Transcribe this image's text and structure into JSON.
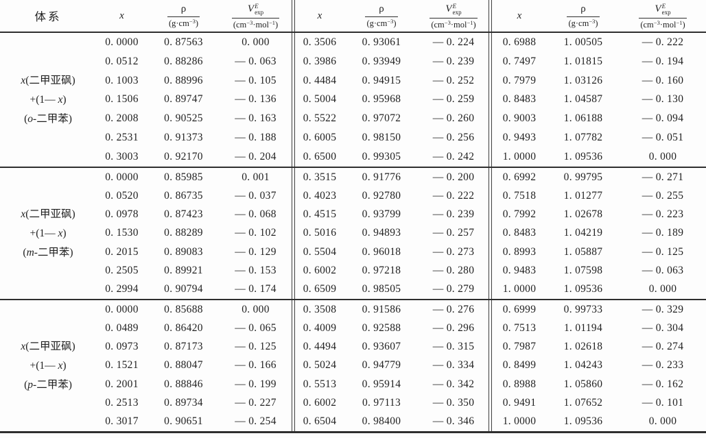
{
  "page": {
    "background": "#fdfdfd",
    "text_color": "#1f1f1f",
    "rule_color": "#2e2e2e"
  },
  "table": {
    "header": {
      "system": "体系",
      "x": "x",
      "rho": {
        "symbol": "ρ",
        "unit_pre": "(g·cm",
        "unit_sup": "−3",
        "unit_post": ")"
      },
      "v": {
        "symbol": "V",
        "sup": "E",
        "sub": "exp",
        "unit_pre": "(cm",
        "unit_sup1": "−3",
        "unit_mid": "·mol",
        "unit_sup2": "−1",
        "unit_post": ")"
      }
    },
    "groups": [
      {
        "system": {
          "l1_italic": "x",
          "l1": "(二甲亚砜)",
          "l2_pre": "+(1— ",
          "l2_italic": "x",
          "l2_post": ")",
          "l3_pre": "(",
          "l3_italic": "o",
          "l3_post": "-二甲苯)"
        },
        "blocks": [
          {
            "rows": [
              [
                "0. 0000",
                "0. 87563",
                "0. 000"
              ],
              [
                "0. 0512",
                "0. 88286",
                "— 0. 063"
              ],
              [
                "0. 1003",
                "0. 88996",
                "— 0. 105"
              ],
              [
                "0. 1506",
                "0. 89747",
                "— 0. 136"
              ],
              [
                "0. 2008",
                "0. 90525",
                "— 0. 163"
              ],
              [
                "0. 2531",
                "0. 91373",
                "— 0. 188"
              ],
              [
                "0. 3003",
                "0. 92170",
                "— 0. 204"
              ]
            ]
          },
          {
            "rows": [
              [
                "0. 3506",
                "0. 93061",
                "— 0. 224"
              ],
              [
                "0. 3986",
                "0. 93949",
                "— 0. 239"
              ],
              [
                "0. 4484",
                "0. 94915",
                "— 0. 252"
              ],
              [
                "0. 5004",
                "0. 95968",
                "— 0. 259"
              ],
              [
                "0. 5522",
                "0. 97072",
                "— 0. 260"
              ],
              [
                "0. 6005",
                "0. 98150",
                "— 0. 256"
              ],
              [
                "0. 6500",
                "0. 99305",
                "— 0. 242"
              ]
            ]
          },
          {
            "rows": [
              [
                "0. 6988",
                "1. 00505",
                "— 0. 222"
              ],
              [
                "0. 7497",
                "1. 01815",
                "— 0. 194"
              ],
              [
                "0. 7979",
                "1. 03126",
                "— 0. 160"
              ],
              [
                "0. 8483",
                "1. 04587",
                "— 0. 130"
              ],
              [
                "0. 9003",
                "1. 06188",
                "— 0. 094"
              ],
              [
                "0. 9493",
                "1. 07782",
                "— 0. 051"
              ],
              [
                "1. 0000",
                "1. 09536",
                "0. 000"
              ]
            ]
          }
        ]
      },
      {
        "system": {
          "l1_italic": "x",
          "l1": "(二甲亚砜)",
          "l2_pre": "+(1— ",
          "l2_italic": "x",
          "l2_post": ")",
          "l3_pre": "(",
          "l3_italic": "m",
          "l3_post": "-二甲苯)"
        },
        "blocks": [
          {
            "rows": [
              [
                "0. 0000",
                "0. 85985",
                "0. 001"
              ],
              [
                "0. 0520",
                "0. 86735",
                "— 0. 037"
              ],
              [
                "0. 0978",
                "0. 87423",
                "— 0. 068"
              ],
              [
                "0. 1530",
                "0. 88289",
                "— 0. 102"
              ],
              [
                "0. 2015",
                "0. 89083",
                "— 0. 129"
              ],
              [
                "0. 2505",
                "0. 89921",
                "— 0. 153"
              ],
              [
                "0. 2994",
                "0. 90794",
                "— 0. 174"
              ]
            ]
          },
          {
            "rows": [
              [
                "0. 3515",
                "0. 91776",
                "— 0. 200"
              ],
              [
                "0. 4023",
                "0. 92780",
                "— 0. 222"
              ],
              [
                "0. 4515",
                "0. 93799",
                "— 0. 239"
              ],
              [
                "0. 5016",
                "0. 94893",
                "— 0. 257"
              ],
              [
                "0. 5504",
                "0. 96018",
                "— 0. 273"
              ],
              [
                "0. 6002",
                "0. 97218",
                "— 0. 280"
              ],
              [
                "0. 6509",
                "0. 98505",
                "— 0. 279"
              ]
            ]
          },
          {
            "rows": [
              [
                "0. 6992",
                "0. 99795",
                "— 0. 271"
              ],
              [
                "0. 7518",
                "1. 01277",
                "— 0. 255"
              ],
              [
                "0. 7992",
                "1. 02678",
                "— 0. 223"
              ],
              [
                "0. 8483",
                "1. 04219",
                "— 0. 189"
              ],
              [
                "0. 8993",
                "1. 05887",
                "— 0. 125"
              ],
              [
                "0. 9483",
                "1. 07598",
                "— 0. 063"
              ],
              [
                "1. 0000",
                "1. 09536",
                "0. 000"
              ]
            ]
          }
        ]
      },
      {
        "system": {
          "l1_italic": "x",
          "l1": "(二甲亚砜)",
          "l2_pre": "+(1— ",
          "l2_italic": "x",
          "l2_post": ")",
          "l3_pre": "(",
          "l3_italic": "p",
          "l3_post": "-二甲苯)"
        },
        "blocks": [
          {
            "rows": [
              [
                "0. 0000",
                "0. 85688",
                "0. 000"
              ],
              [
                "0. 0489",
                "0. 86420",
                "— 0. 065"
              ],
              [
                "0. 0973",
                "0. 87173",
                "— 0. 125"
              ],
              [
                "0. 1521",
                "0. 88047",
                "— 0. 166"
              ],
              [
                "0. 2001",
                "0. 88846",
                "— 0. 199"
              ],
              [
                "0. 2513",
                "0. 89734",
                "— 0. 227"
              ],
              [
                "0. 3017",
                "0. 90651",
                "— 0. 254"
              ]
            ]
          },
          {
            "rows": [
              [
                "0. 3508",
                "0. 91586",
                "— 0. 276"
              ],
              [
                "0. 4009",
                "0. 92588",
                "— 0. 296"
              ],
              [
                "0. 4494",
                "0. 93607",
                "— 0. 315"
              ],
              [
                "0. 5024",
                "0. 94779",
                "— 0. 334"
              ],
              [
                "0. 5513",
                "0. 95914",
                "— 0. 342"
              ],
              [
                "0. 6002",
                "0. 97113",
                "— 0. 350"
              ],
              [
                "0. 6504",
                "0. 98400",
                "— 0. 346"
              ]
            ]
          },
          {
            "rows": [
              [
                "0. 6999",
                "0. 99733",
                "— 0. 329"
              ],
              [
                "0. 7513",
                "1. 01194",
                "— 0. 304"
              ],
              [
                "0. 7987",
                "1. 02618",
                "— 0. 274"
              ],
              [
                "0. 8499",
                "1. 04243",
                "— 0. 233"
              ],
              [
                "0. 8988",
                "1. 05860",
                "— 0. 162"
              ],
              [
                "0. 9491",
                "1. 07652",
                "— 0. 101"
              ],
              [
                "1. 0000",
                "1. 09536",
                "0. 000"
              ]
            ]
          }
        ]
      }
    ]
  }
}
